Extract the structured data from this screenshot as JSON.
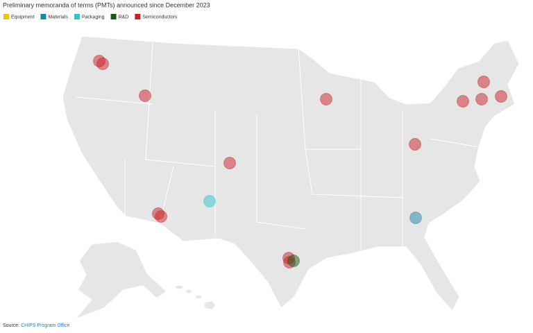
{
  "title": "Preliminary memoranda of terms (PMTs) announced since December 2023",
  "legend": [
    {
      "label": "Equipment",
      "color": "#f0c400"
    },
    {
      "label": "Materials",
      "color": "#1d86a3"
    },
    {
      "label": "Packaging",
      "color": "#2ec6c8"
    },
    {
      "label": "R&D",
      "color": "#165c16"
    },
    {
      "label": "Semiconductors",
      "color": "#c91f24"
    }
  ],
  "markers": [
    {
      "category": "Semiconductors"
    },
    {
      "category": "Semiconductors"
    },
    {
      "category": "Semiconductors"
    },
    {
      "category": "Semiconductors"
    },
    {
      "category": "Semiconductors"
    },
    {
      "category": "Semiconductors"
    },
    {
      "category": "Semiconductors"
    },
    {
      "category": "Semiconductors"
    },
    {
      "category": "Semiconductors"
    },
    {
      "category": "Semiconductors"
    },
    {
      "category": "Semiconductors"
    },
    {
      "category": "Semiconductors"
    },
    {
      "category": "Semiconductors"
    },
    {
      "category": "Semiconductors"
    },
    {
      "category": "Packaging"
    },
    {
      "category": "Materials"
    },
    {
      "category": "R&D"
    }
  ],
  "source": {
    "prefix": "Source:",
    "link": "CHIPS Program Office"
  }
}
